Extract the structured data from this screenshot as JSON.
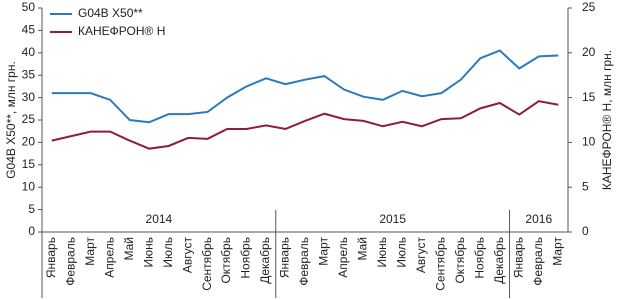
{
  "chart_data": {
    "type": "line",
    "categories": [
      "Январь",
      "Февраль",
      "Март",
      "Апрель",
      "Май",
      "Июнь",
      "Июль",
      "Август",
      "Сентябрь",
      "Октябрь",
      "Ноябрь",
      "Декабрь",
      "Январь",
      "Февраль",
      "Март",
      "Апрель",
      "Май",
      "Июнь",
      "Июль",
      "Август",
      "Сентябрь",
      "Октябрь",
      "Ноябрь",
      "Декабрь",
      "Январь",
      "Февраль",
      "Март"
    ],
    "x_groups": [
      {
        "label": "2014",
        "size": 12
      },
      {
        "label": "2015",
        "size": 12
      },
      {
        "label": "2016",
        "size": 3
      }
    ],
    "series": [
      {
        "name": "G04B X50**",
        "color": "#2b7bbb",
        "values": [
          31,
          31,
          31,
          29.5,
          25,
          24.5,
          26.3,
          26.3,
          26.8,
          30,
          32.5,
          34.3,
          33,
          34,
          34.8,
          31.8,
          30.2,
          29.5,
          31.5,
          30.3,
          31,
          34,
          38.8,
          40.5,
          36.5,
          39.2,
          39.4
        ]
      },
      {
        "name": "КАНЕФРОН® Н",
        "color": "#8c1d40",
        "axis": "y2",
        "values": [
          10.2,
          10.7,
          11.2,
          11.2,
          10.2,
          9.3,
          9.6,
          10.5,
          10.4,
          11.5,
          11.5,
          11.9,
          11.5,
          12.4,
          13.2,
          12.6,
          12.4,
          11.8,
          12.3,
          11.8,
          12.6,
          12.7,
          13.8,
          14.4,
          13.1,
          14.6,
          14.2
        ]
      }
    ],
    "ylabel": "G04B X50**, млн грн.",
    "y2label": "КАНЕФРОН® Н, млн грн.",
    "ylim": [
      0,
      50
    ],
    "yticks": [
      0,
      5,
      10,
      15,
      20,
      25,
      30,
      35,
      40,
      45,
      50
    ],
    "y2lim": [
      0,
      25
    ],
    "y2ticks": [
      0,
      5,
      10,
      15,
      20,
      25
    ],
    "legend": "upper left",
    "grid": false
  }
}
